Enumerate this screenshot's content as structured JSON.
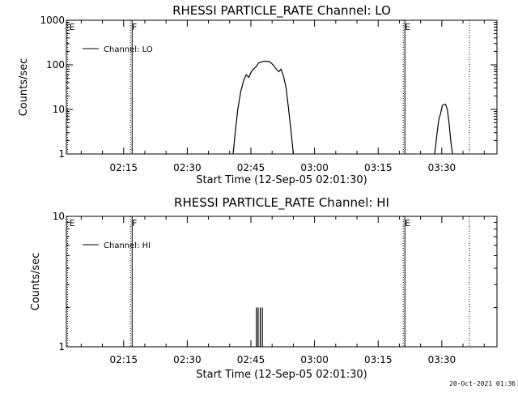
{
  "chart_data": [
    {
      "type": "line",
      "title": "RHESSI PARTICLE_RATE Channel: LO",
      "xlabel": "Start Time (12-Sep-05 02:01:30)",
      "ylabel": "Counts/sec",
      "yscale": "log",
      "ylim": [
        1,
        1000
      ],
      "xlim_minutes": [
        0,
        101.5
      ],
      "x_ticks": [
        {
          "label": "02:15",
          "minute": 13.5
        },
        {
          "label": "02:30",
          "minute": 28.5
        },
        {
          "label": "02:45",
          "minute": 43.5
        },
        {
          "label": "03:00",
          "minute": 58.5
        },
        {
          "label": "03:15",
          "minute": 73.5
        },
        {
          "label": "03:30",
          "minute": 88.5
        }
      ],
      "y_ticks": [
        {
          "label": "1",
          "value": 1
        },
        {
          "label": "10",
          "value": 10
        },
        {
          "label": "100",
          "value": 100
        },
        {
          "label": "1000",
          "value": 1000
        }
      ],
      "legend": "Channel: LO",
      "markers": [
        {
          "label": "E",
          "minute": 0.3,
          "style": "dotted"
        },
        {
          "label": "F",
          "minute": 15.1,
          "style": "dotted"
        },
        {
          "label": "",
          "minute": 15.5,
          "style": "solid"
        },
        {
          "label": "E",
          "minute": 79.4,
          "style": "dotted"
        },
        {
          "label": "",
          "minute": 79.8,
          "style": "solid"
        },
        {
          "label": "",
          "minute": 95.0,
          "style": "dotted"
        }
      ],
      "series": [
        {
          "name": "Channel: LO",
          "segments": [
            [
              [
                39.3,
                1
              ],
              [
                39.8,
                3
              ],
              [
                40.4,
                10
              ],
              [
                41.1,
                25
              ],
              [
                41.8,
                45
              ],
              [
                42.4,
                60
              ],
              [
                43.0,
                52
              ],
              [
                43.6,
                70
              ],
              [
                44.1,
                80
              ],
              [
                44.7,
                90
              ],
              [
                45.3,
                110
              ],
              [
                45.9,
                115
              ],
              [
                46.5,
                120
              ],
              [
                47.1,
                120
              ],
              [
                47.7,
                118
              ],
              [
                48.3,
                110
              ],
              [
                48.9,
                95
              ],
              [
                49.5,
                80
              ],
              [
                50.1,
                70
              ],
              [
                50.6,
                80
              ],
              [
                51.2,
                55
              ],
              [
                51.8,
                30
              ],
              [
                52.4,
                10
              ],
              [
                53.0,
                3
              ],
              [
                53.5,
                1
              ]
            ],
            [
              [
                86.8,
                1
              ],
              [
                87.4,
                3
              ],
              [
                87.8,
                6
              ],
              [
                88.2,
                8
              ],
              [
                88.6,
                12
              ],
              [
                89.0,
                13
              ],
              [
                89.4,
                13
              ],
              [
                89.8,
                10
              ],
              [
                90.2,
                5
              ],
              [
                90.6,
                2
              ],
              [
                91.0,
                1
              ]
            ]
          ]
        }
      ]
    },
    {
      "type": "line",
      "title": "RHESSI PARTICLE_RATE Channel: HI",
      "xlabel": "Start Time (12-Sep-05 02:01:30)",
      "ylabel": "Counts/sec",
      "yscale": "log",
      "ylim": [
        1,
        10
      ],
      "xlim_minutes": [
        0,
        101.5
      ],
      "x_ticks": [
        {
          "label": "02:15",
          "minute": 13.5
        },
        {
          "label": "02:30",
          "minute": 28.5
        },
        {
          "label": "02:45",
          "minute": 43.5
        },
        {
          "label": "03:00",
          "minute": 58.5
        },
        {
          "label": "03:15",
          "minute": 73.5
        },
        {
          "label": "03:30",
          "minute": 88.5
        }
      ],
      "y_ticks": [
        {
          "label": "1",
          "value": 1
        },
        {
          "label": "10",
          "value": 10
        }
      ],
      "legend": "Channel: HI",
      "markers": [
        {
          "label": "E",
          "minute": 0.3,
          "style": "dotted"
        },
        {
          "label": "F",
          "minute": 15.1,
          "style": "dotted"
        },
        {
          "label": "",
          "minute": 15.5,
          "style": "solid"
        },
        {
          "label": "E",
          "minute": 79.4,
          "style": "dotted"
        },
        {
          "label": "",
          "minute": 79.8,
          "style": "solid"
        },
        {
          "label": "",
          "minute": 95.0,
          "style": "dotted"
        }
      ],
      "series": [
        {
          "name": "Channel: HI",
          "spikes": [
            {
              "minute": 44.8,
              "value": 2
            },
            {
              "minute": 45.2,
              "value": 2
            },
            {
              "minute": 45.7,
              "value": 2
            },
            {
              "minute": 46.2,
              "value": 2
            }
          ]
        }
      ]
    }
  ],
  "footer": {
    "timestamp": "20-Oct-2021 01:36"
  }
}
